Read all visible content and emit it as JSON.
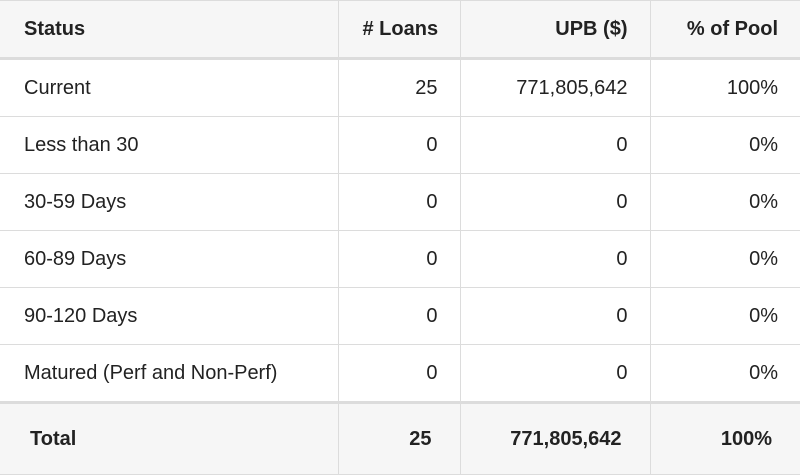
{
  "table": {
    "header": [
      "Status",
      "# Loans",
      "UPB ($)",
      "% of Pool"
    ],
    "rows": [
      [
        "Current",
        "25",
        "771,805,642",
        "100%"
      ],
      [
        "Less than 30",
        "0",
        "0",
        "0%"
      ],
      [
        "30-59 Days",
        "0",
        "0",
        "0%"
      ],
      [
        "60-89 Days",
        "0",
        "0",
        "0%"
      ],
      [
        "90-120 Days",
        "0",
        "0",
        "0%"
      ],
      [
        "Matured (Perf and Non-Perf)",
        "0",
        "0",
        "0%"
      ]
    ],
    "footer": [
      "Total",
      "25",
      "771,805,642",
      "100%"
    ]
  }
}
